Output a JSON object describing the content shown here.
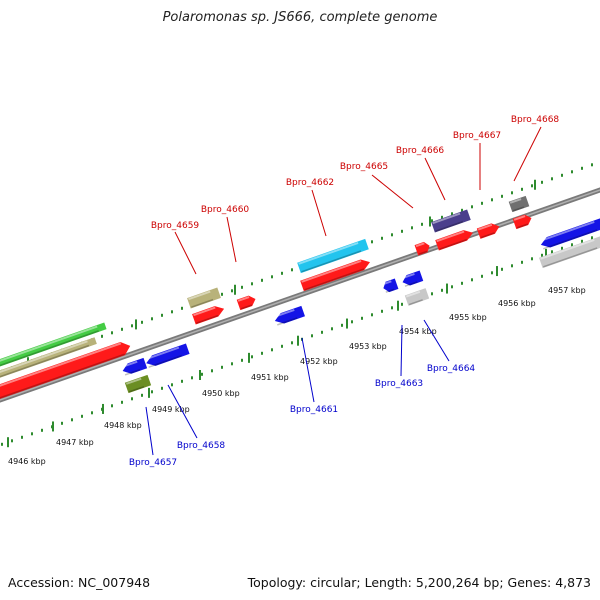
{
  "title": "Polaromonas sp. JS666, complete genome",
  "footer": {
    "accession": "Accession: NC_007948",
    "summary": "Topology: circular; Length: 5,200,264 bp; Genes: 4,873"
  },
  "colors": {
    "forward_label": "#cc0000",
    "reverse_label": "#0000cc",
    "backbone": "#8a8a8a",
    "tick": "#2e8b2e"
  },
  "position_labels": [
    "4946 kbp",
    "4947 kbp",
    "4948 kbp",
    "4949 kbp",
    "4950 kbp",
    "4951 kbp",
    "4952 kbp",
    "4953 kbp",
    "4954 kbp",
    "4955 kbp",
    "4956 kbp",
    "4957 kbp"
  ],
  "forward_labels": [
    "Bpro_4659",
    "Bpro_4660",
    "Bpro_4662",
    "Bpro_4665",
    "Bpro_4666",
    "Bpro_4667",
    "Bpro_4668"
  ],
  "reverse_labels": [
    "Bpro_4657",
    "Bpro_4658",
    "Bpro_4661",
    "Bpro_4663",
    "Bpro_4664"
  ],
  "gene_colors": {
    "red": "#ff1a1a",
    "blue": "#1414e6",
    "green": "#44cc44",
    "khaki": "#b8b27a",
    "cyan": "#22c4ee",
    "navy": "#4a3e8c",
    "gray": "#707070",
    "light_gray": "#c8c8c8",
    "olive": "#6b8e23"
  }
}
